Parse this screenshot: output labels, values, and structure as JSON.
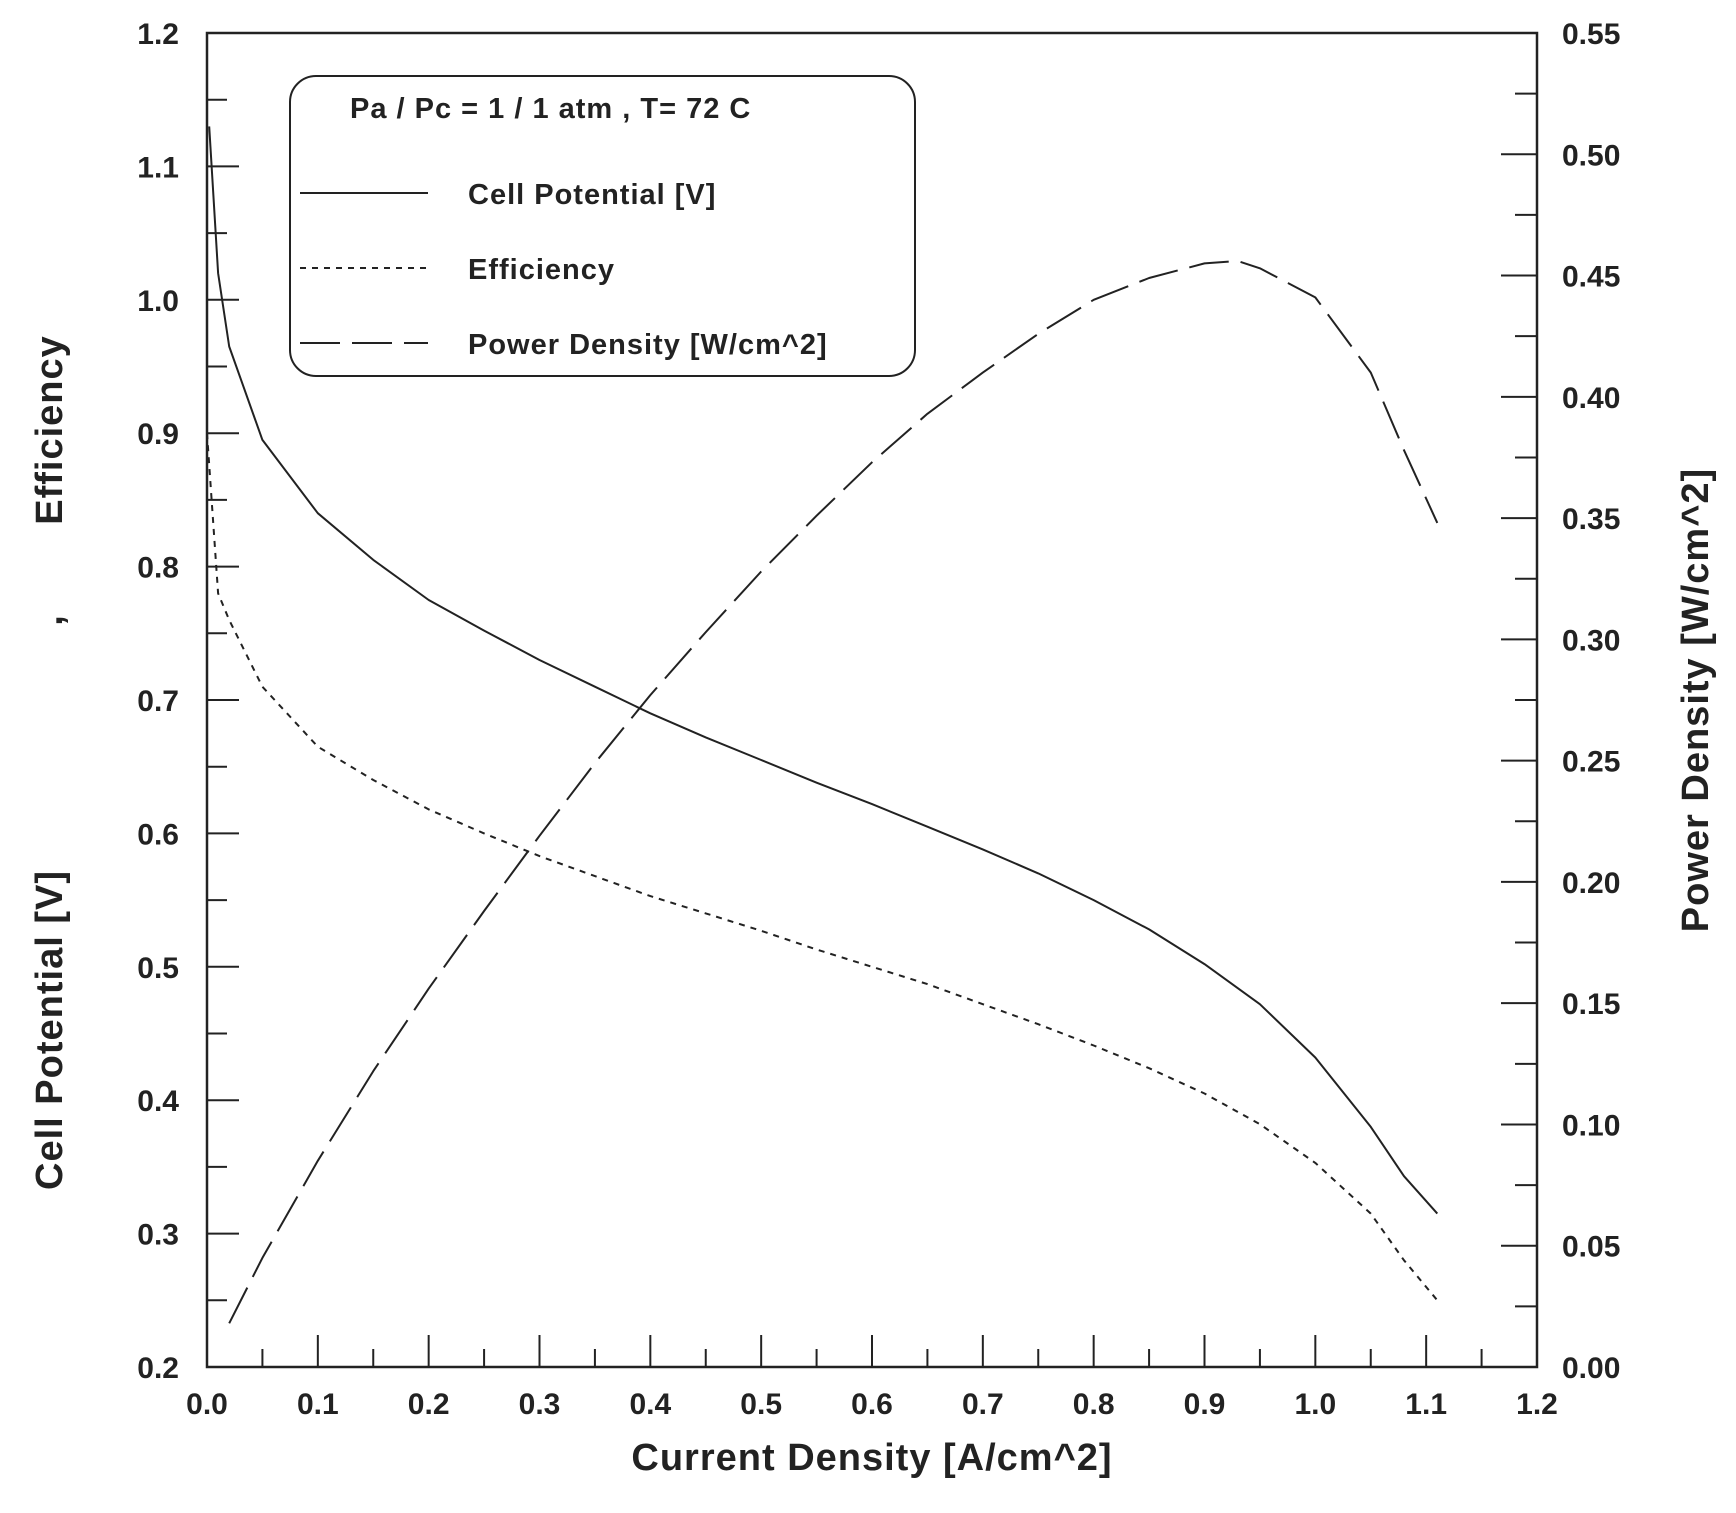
{
  "chart_data": {
    "type": "line",
    "title": "",
    "xlabel": "Current Density [A/cm^2]",
    "ylabel": {
      "part1": "Cell Potential [V]",
      "sep": ",",
      "part2": "Efficiency"
    },
    "y2label": "Power Density [W/cm^2]",
    "xlim": [
      0.0,
      1.2
    ],
    "ylim": [
      0.2,
      1.2
    ],
    "y2lim": [
      0.0,
      0.55
    ],
    "x_ticks": [
      "0.0",
      "0.1",
      "0.2",
      "0.3",
      "0.4",
      "0.5",
      "0.6",
      "0.7",
      "0.8",
      "0.9",
      "1.0",
      "1.1",
      "1.2"
    ],
    "y_ticks": [
      "0.2",
      "0.3",
      "0.4",
      "0.5",
      "0.6",
      "0.7",
      "0.8",
      "0.9",
      "1.0",
      "1.1",
      "1.2"
    ],
    "y2_ticks": [
      "0.00",
      "0.05",
      "0.10",
      "0.15",
      "0.20",
      "0.25",
      "0.30",
      "0.35",
      "0.40",
      "0.45",
      "0.50",
      "0.55"
    ],
    "grid": false,
    "legend": {
      "placement": "top-left",
      "header": "Pa / Pc = 1 / 1 atm  ,  T= 72 C",
      "entries": [
        "Cell Potential [V]",
        "Efficiency",
        "Power Density [W/cm^2]"
      ]
    },
    "series": [
      {
        "name": "Cell Potential [V]",
        "axis": "left",
        "style": "solid",
        "points": [
          [
            0.002,
            1.13
          ],
          [
            0.01,
            1.02
          ],
          [
            0.02,
            0.965
          ],
          [
            0.05,
            0.895
          ],
          [
            0.1,
            0.84
          ],
          [
            0.15,
            0.805
          ],
          [
            0.2,
            0.775
          ],
          [
            0.25,
            0.752
          ],
          [
            0.3,
            0.73
          ],
          [
            0.35,
            0.71
          ],
          [
            0.4,
            0.69
          ],
          [
            0.45,
            0.672
          ],
          [
            0.5,
            0.655
          ],
          [
            0.55,
            0.638
          ],
          [
            0.6,
            0.622
          ],
          [
            0.65,
            0.605
          ],
          [
            0.7,
            0.588
          ],
          [
            0.75,
            0.57
          ],
          [
            0.8,
            0.55
          ],
          [
            0.85,
            0.528
          ],
          [
            0.9,
            0.502
          ],
          [
            0.95,
            0.472
          ],
          [
            1.0,
            0.432
          ],
          [
            1.05,
            0.38
          ],
          [
            1.08,
            0.343
          ],
          [
            1.11,
            0.315
          ]
        ]
      },
      {
        "name": "Efficiency",
        "axis": "left",
        "style": "dashed",
        "points": [
          [
            0.0,
            0.9
          ],
          [
            0.01,
            0.78
          ],
          [
            0.02,
            0.76
          ],
          [
            0.05,
            0.71
          ],
          [
            0.1,
            0.665
          ],
          [
            0.15,
            0.64
          ],
          [
            0.2,
            0.618
          ],
          [
            0.25,
            0.6
          ],
          [
            0.3,
            0.583
          ],
          [
            0.35,
            0.568
          ],
          [
            0.4,
            0.553
          ],
          [
            0.45,
            0.54
          ],
          [
            0.5,
            0.527
          ],
          [
            0.55,
            0.513
          ],
          [
            0.6,
            0.5
          ],
          [
            0.65,
            0.487
          ],
          [
            0.7,
            0.472
          ],
          [
            0.75,
            0.457
          ],
          [
            0.8,
            0.441
          ],
          [
            0.85,
            0.424
          ],
          [
            0.9,
            0.405
          ],
          [
            0.95,
            0.382
          ],
          [
            1.0,
            0.353
          ],
          [
            1.05,
            0.315
          ],
          [
            1.08,
            0.28
          ],
          [
            1.11,
            0.25
          ]
        ]
      },
      {
        "name": "Power Density [W/cm^2]",
        "axis": "right",
        "style": "longdash",
        "points": [
          [
            0.02,
            0.018
          ],
          [
            0.05,
            0.045
          ],
          [
            0.1,
            0.085
          ],
          [
            0.15,
            0.122
          ],
          [
            0.2,
            0.156
          ],
          [
            0.25,
            0.188
          ],
          [
            0.3,
            0.219
          ],
          [
            0.35,
            0.249
          ],
          [
            0.4,
            0.277
          ],
          [
            0.45,
            0.303
          ],
          [
            0.5,
            0.328
          ],
          [
            0.55,
            0.351
          ],
          [
            0.6,
            0.373
          ],
          [
            0.65,
            0.393
          ],
          [
            0.7,
            0.41
          ],
          [
            0.75,
            0.426
          ],
          [
            0.8,
            0.44
          ],
          [
            0.85,
            0.449
          ],
          [
            0.9,
            0.455
          ],
          [
            0.93,
            0.456
          ],
          [
            0.95,
            0.453
          ],
          [
            1.0,
            0.441
          ],
          [
            1.05,
            0.41
          ],
          [
            1.08,
            0.378
          ],
          [
            1.11,
            0.348
          ]
        ]
      }
    ]
  }
}
